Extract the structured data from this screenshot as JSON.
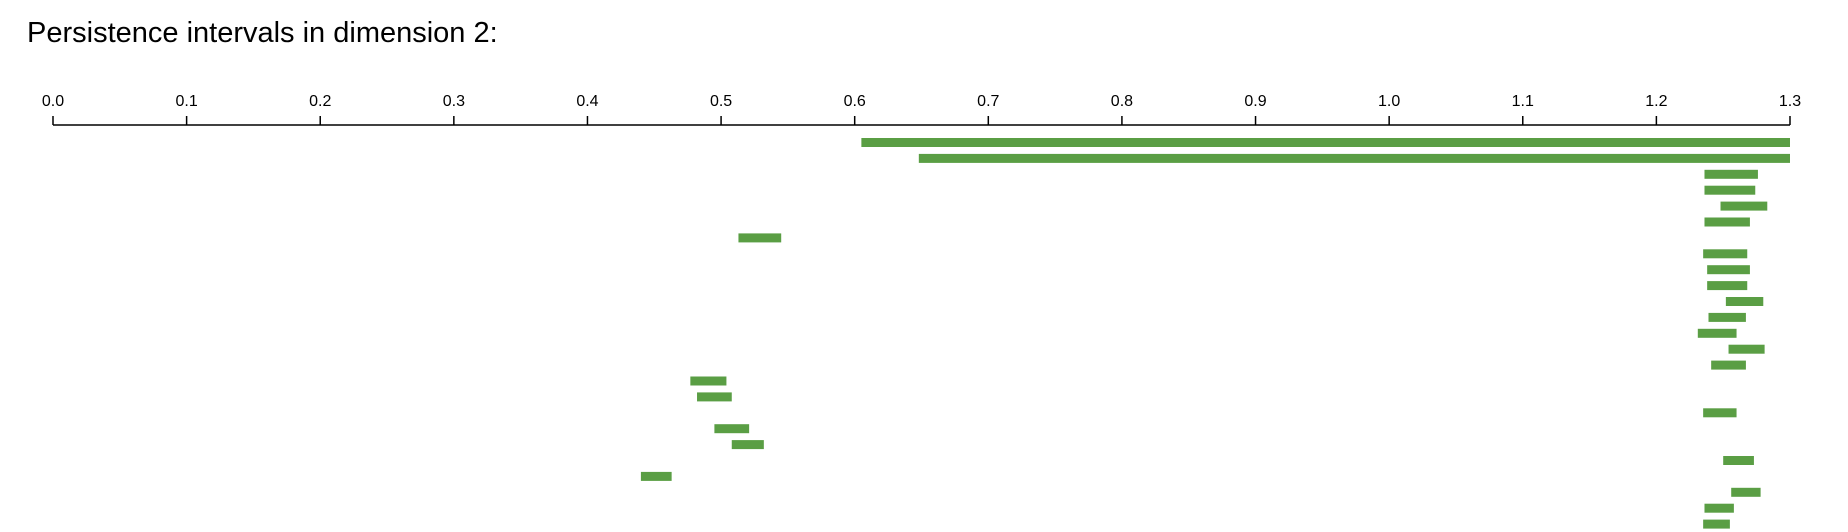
{
  "title": "Persistence intervals in dimension 2:",
  "chart_data": {
    "type": "barcode",
    "title": "Persistence intervals in dimension 2:",
    "xlabel": "",
    "ylabel": "",
    "xlim": [
      0.0,
      1.3
    ],
    "x_ticks": [
      "0.0",
      "0.1",
      "0.2",
      "0.3",
      "0.4",
      "0.5",
      "0.6",
      "0.7",
      "0.8",
      "0.9",
      "1.0",
      "1.1",
      "1.2",
      "1.3"
    ],
    "bar_color": "#5a9e44",
    "grid": false,
    "legend": "none",
    "intervals": [
      {
        "birth": 0.605,
        "death": 1.3
      },
      {
        "birth": 0.648,
        "death": 1.3
      },
      {
        "birth": 1.236,
        "death": 1.276
      },
      {
        "birth": 1.236,
        "death": 1.274
      },
      {
        "birth": 1.248,
        "death": 1.283
      },
      {
        "birth": 1.236,
        "death": 1.27
      },
      {
        "birth": 0.513,
        "death": 0.545
      },
      {
        "birth": 1.235,
        "death": 1.268
      },
      {
        "birth": 1.238,
        "death": 1.27
      },
      {
        "birth": 1.238,
        "death": 1.268
      },
      {
        "birth": 1.252,
        "death": 1.28
      },
      {
        "birth": 1.239,
        "death": 1.267
      },
      {
        "birth": 1.231,
        "death": 1.26
      },
      {
        "birth": 1.254,
        "death": 1.281
      },
      {
        "birth": 1.241,
        "death": 1.267
      },
      {
        "birth": 0.477,
        "death": 0.504
      },
      {
        "birth": 0.482,
        "death": 0.508
      },
      {
        "birth": 1.235,
        "death": 1.26
      },
      {
        "birth": 0.495,
        "death": 0.521
      },
      {
        "birth": 0.508,
        "death": 0.532
      },
      {
        "birth": 1.25,
        "death": 1.273
      },
      {
        "birth": 0.44,
        "death": 0.463
      },
      {
        "birth": 1.256,
        "death": 1.278
      },
      {
        "birth": 1.236,
        "death": 1.258
      },
      {
        "birth": 1.235,
        "death": 1.255
      }
    ]
  }
}
